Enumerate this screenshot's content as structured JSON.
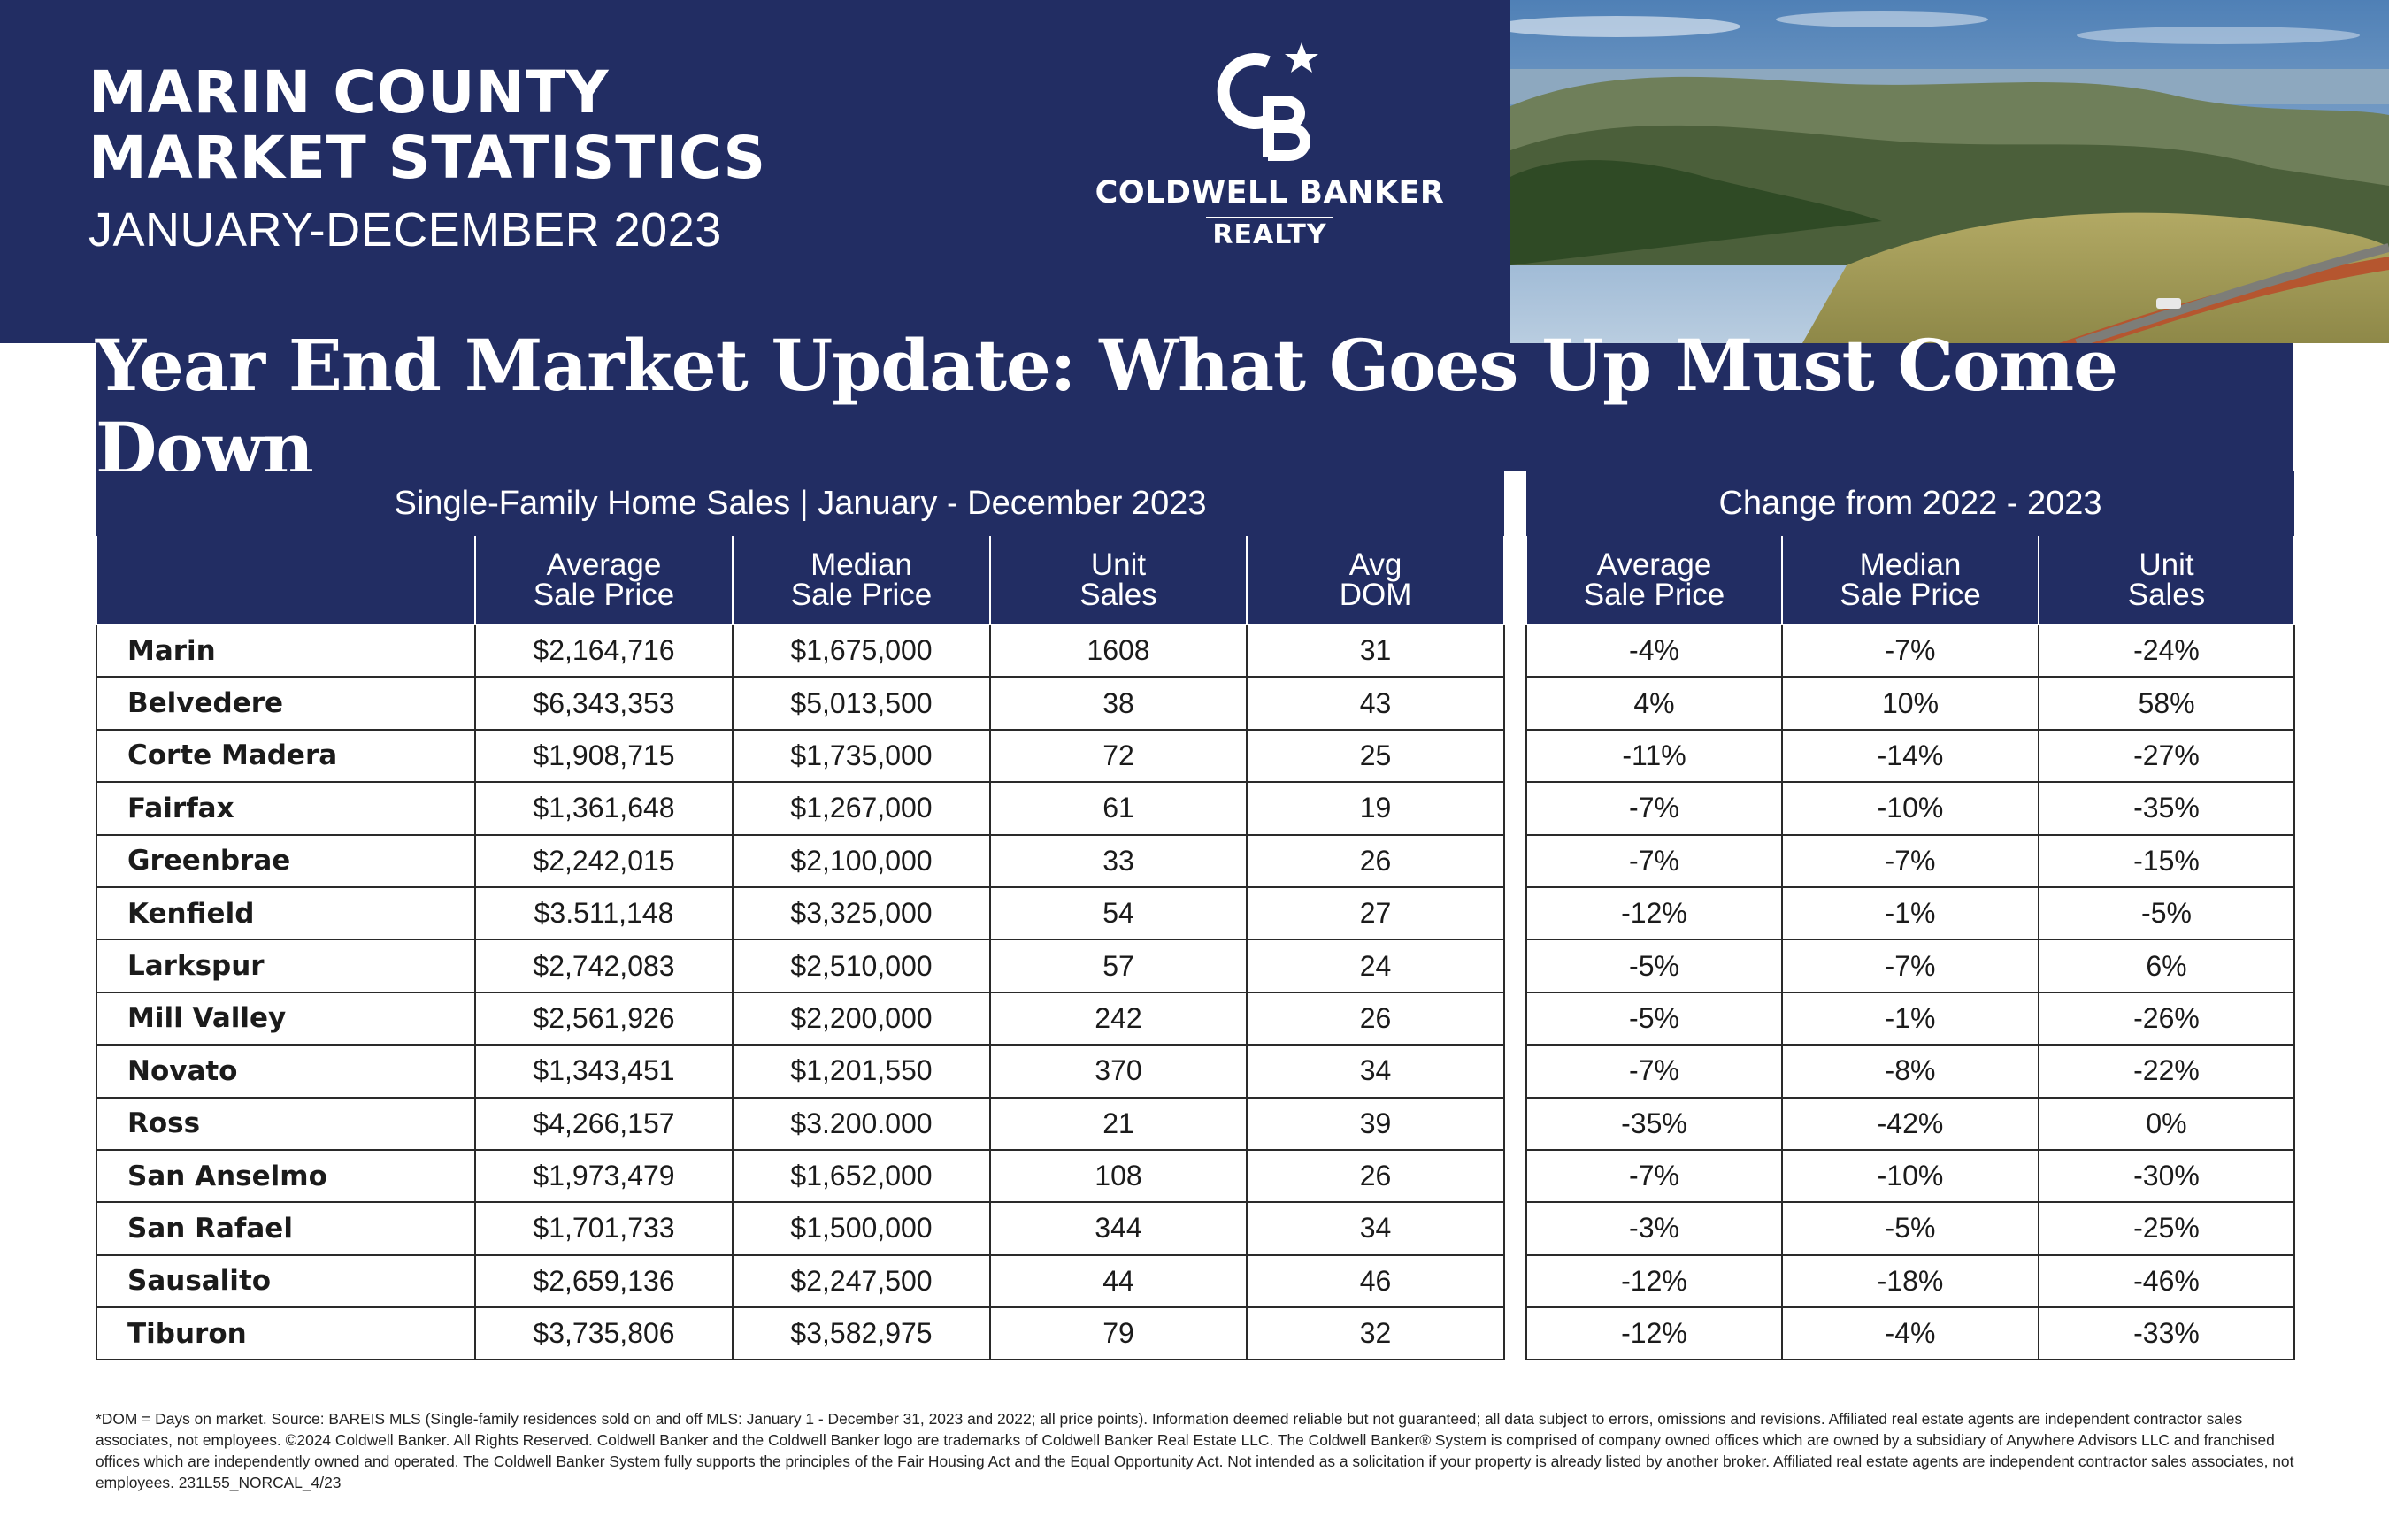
{
  "header": {
    "title_line1": "MARIN COUNTY",
    "title_line2": "MARKET STATISTICS",
    "subtitle": "JANUARY-DECEMBER 2023",
    "brand_name": "COLDWELL BANKER",
    "brand_sub": "REALTY",
    "brand_color": "#222d63"
  },
  "banner": {
    "text": "Year End Market Update: What Goes Up Must Come Down"
  },
  "left_table": {
    "group_title": "Single-Family Home Sales | January - December 2023",
    "columns": [
      {
        "l1": "Average",
        "l2": "Sale Price"
      },
      {
        "l1": "Median",
        "l2": "Sale Price"
      },
      {
        "l1": "Unit",
        "l2": "Sales"
      },
      {
        "l1": "Avg",
        "l2": "DOM"
      }
    ]
  },
  "right_table": {
    "group_title": "Change from 2022 - 2023",
    "columns": [
      {
        "l1": "Average",
        "l2": "Sale Price"
      },
      {
        "l1": "Median",
        "l2": "Sale Price"
      },
      {
        "l1": "Unit",
        "l2": "Sales"
      }
    ]
  },
  "rows": [
    {
      "name": "Marin",
      "avg": "$2,164,716",
      "median": "$1,675,000",
      "units": "1608",
      "dom": "31",
      "chg_avg": "-4%",
      "chg_median": "-7%",
      "chg_units": "-24%"
    },
    {
      "name": "Belvedere",
      "avg": "$6,343,353",
      "median": "$5,013,500",
      "units": "38",
      "dom": "43",
      "chg_avg": "4%",
      "chg_median": "10%",
      "chg_units": "58%"
    },
    {
      "name": "Corte Madera",
      "avg": "$1,908,715",
      "median": "$1,735,000",
      "units": "72",
      "dom": "25",
      "chg_avg": "-11%",
      "chg_median": "-14%",
      "chg_units": "-27%"
    },
    {
      "name": "Fairfax",
      "avg": "$1,361,648",
      "median": "$1,267,000",
      "units": "61",
      "dom": "19",
      "chg_avg": "-7%",
      "chg_median": "-10%",
      "chg_units": "-35%"
    },
    {
      "name": "Greenbrae",
      "avg": "$2,242,015",
      "median": "$2,100,000",
      "units": "33",
      "dom": "26",
      "chg_avg": "-7%",
      "chg_median": "-7%",
      "chg_units": "-15%"
    },
    {
      "name": "Kenfield",
      "avg": "$3.511,148",
      "median": "$3,325,000",
      "units": "54",
      "dom": "27",
      "chg_avg": "-12%",
      "chg_median": "-1%",
      "chg_units": "-5%"
    },
    {
      "name": "Larkspur",
      "avg": "$2,742,083",
      "median": "$2,510,000",
      "units": "57",
      "dom": "24",
      "chg_avg": "-5%",
      "chg_median": "-7%",
      "chg_units": "6%"
    },
    {
      "name": "Mill Valley",
      "avg": "$2,561,926",
      "median": "$2,200,000",
      "units": "242",
      "dom": "26",
      "chg_avg": "-5%",
      "chg_median": "-1%",
      "chg_units": "-26%"
    },
    {
      "name": "Novato",
      "avg": "$1,343,451",
      "median": "$1,201,550",
      "units": "370",
      "dom": "34",
      "chg_avg": "-7%",
      "chg_median": "-8%",
      "chg_units": "-22%"
    },
    {
      "name": "Ross",
      "avg": "$4,266,157",
      "median": "$3.200.000",
      "units": "21",
      "dom": "39",
      "chg_avg": "-35%",
      "chg_median": "-42%",
      "chg_units": "0%"
    },
    {
      "name": "San Anselmo",
      "avg": "$1,973,479",
      "median": "$1,652,000",
      "units": "108",
      "dom": "26",
      "chg_avg": "-7%",
      "chg_median": "-10%",
      "chg_units": "-30%"
    },
    {
      "name": "San Rafael",
      "avg": "$1,701,733",
      "median": "$1,500,000",
      "units": "344",
      "dom": "34",
      "chg_avg": "-3%",
      "chg_median": "-5%",
      "chg_units": "-25%"
    },
    {
      "name": "Sausalito",
      "avg": "$2,659,136",
      "median": "$2,247,500",
      "units": "44",
      "dom": "46",
      "chg_avg": "-12%",
      "chg_median": "-18%",
      "chg_units": "-46%"
    },
    {
      "name": "Tiburon",
      "avg": "$3,735,806",
      "median": "$3,582,975",
      "units": "79",
      "dom": "32",
      "chg_avg": "-12%",
      "chg_median": "-4%",
      "chg_units": "-33%"
    }
  ],
  "footnote": "*DOM = Days on market. Source: BAREIS MLS (Single-family residences sold on and off MLS: January 1 - December 31, 2023 and 2022; all price points). Information deemed reliable but not guaranteed; all data subject to errors, omissions and revisions. Affiliated real estate agents are independent contractor sales associates, not employees. ©2024 Coldwell Banker. All Rights Reserved. Coldwell Banker and the Coldwell Banker logo are trademarks of Coldwell Banker Real Estate LLC. The Coldwell Banker® System is comprised of company owned offices which are owned by a subsidiary of Anywhere Advisors LLC and franchised offices which are independently owned and operated. The Coldwell Banker System fully supports the principles of the Fair Housing Act and the Equal Opportunity Act. Not intended as a solicitation if your property is already listed by another broker. Affiliated real estate agents are independent contractor sales associates, not employees. 231L55_NORCAL_4/23"
}
